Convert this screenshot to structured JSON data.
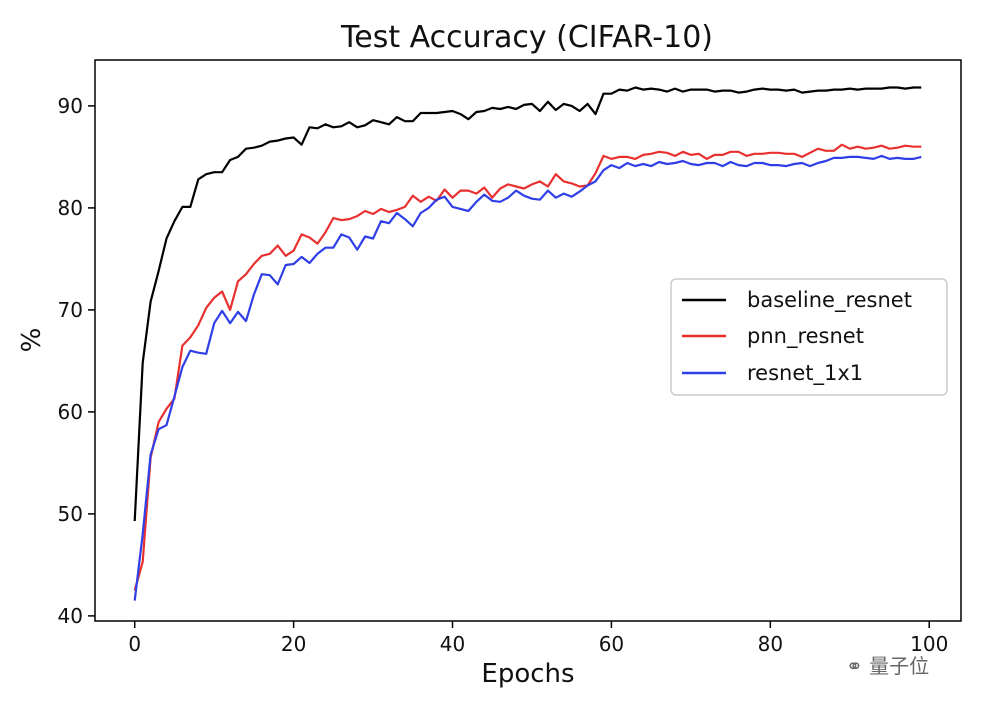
{
  "chart_data": {
    "type": "line",
    "title": "Test Accuracy (CIFAR-10)",
    "xlabel": "Epochs",
    "ylabel": "%",
    "xlim": [
      -5,
      104
    ],
    "ylim": [
      39.5,
      94.5
    ],
    "x_ticks": [
      0,
      20,
      40,
      60,
      80,
      100
    ],
    "y_ticks": [
      40,
      50,
      60,
      70,
      80,
      90
    ],
    "grid": false,
    "legend_position": "center-right",
    "series": [
      {
        "name": "baseline_resnet",
        "color": "#000000",
        "values": [
          49.3,
          64.8,
          70.8,
          73.8,
          77.0,
          78.7,
          80.1,
          80.1,
          82.8,
          83.3,
          83.5,
          83.5,
          84.7,
          85.0,
          85.8,
          85.9,
          86.1,
          86.5,
          86.6,
          86.8,
          86.9,
          86.2,
          87.9,
          87.8,
          88.2,
          87.9,
          88.0,
          88.4,
          87.9,
          88.1,
          88.6,
          88.4,
          88.2,
          88.9,
          88.5,
          88.5,
          89.3,
          89.3,
          89.3,
          89.4,
          89.5,
          89.2,
          88.7,
          89.4,
          89.5,
          89.8,
          89.7,
          89.9,
          89.7,
          90.1,
          90.2,
          89.5,
          90.4,
          89.6,
          90.2,
          90.0,
          89.5,
          90.2,
          89.2,
          91.2,
          91.2,
          91.6,
          91.5,
          91.8,
          91.6,
          91.7,
          91.6,
          91.4,
          91.7,
          91.4,
          91.6,
          91.6,
          91.6,
          91.4,
          91.5,
          91.5,
          91.3,
          91.4,
          91.6,
          91.7,
          91.6,
          91.6,
          91.5,
          91.6,
          91.3,
          91.4,
          91.5,
          91.5,
          91.6,
          91.6,
          91.7,
          91.6,
          91.7,
          91.7,
          91.7,
          91.8,
          91.8,
          91.7,
          91.8,
          91.8
        ]
      },
      {
        "name": "pnn_resnet",
        "color": "#e8312f",
        "values": [
          42.5,
          45.3,
          55.5,
          59.0,
          60.3,
          61.3,
          66.5,
          67.3,
          68.5,
          70.2,
          71.2,
          71.8,
          70.0,
          72.8,
          73.5,
          74.5,
          75.3,
          75.5,
          76.3,
          75.3,
          75.8,
          77.4,
          77.1,
          76.5,
          77.6,
          79.0,
          78.8,
          78.9,
          79.2,
          79.7,
          79.4,
          79.9,
          79.6,
          79.8,
          80.1,
          81.2,
          80.6,
          81.1,
          80.7,
          81.8,
          81.0,
          81.7,
          81.7,
          81.4,
          82.0,
          81.0,
          81.9,
          82.3,
          82.1,
          81.9,
          82.3,
          82.6,
          82.1,
          83.3,
          82.6,
          82.4,
          82.1,
          82.2,
          83.4,
          85.1,
          84.8,
          85.0,
          85.0,
          84.8,
          85.2,
          85.3,
          85.5,
          85.4,
          85.1,
          85.5,
          85.2,
          85.3,
          84.8,
          85.2,
          85.2,
          85.5,
          85.5,
          85.1,
          85.3,
          85.3,
          85.4,
          85.4,
          85.3,
          85.3,
          85.0,
          85.4,
          85.8,
          85.6,
          85.6,
          86.2,
          85.8,
          86.0,
          85.8,
          85.9,
          86.1,
          85.8,
          85.9,
          86.1,
          86.0,
          86.0
        ]
      },
      {
        "name": "resnet_1x1",
        "color": "#2f3fe8",
        "values": [
          41.5,
          48.0,
          55.8,
          58.3,
          58.7,
          61.5,
          64.4,
          66.0,
          65.8,
          65.7,
          68.7,
          69.9,
          68.7,
          69.8,
          68.9,
          71.5,
          73.5,
          73.4,
          72.5,
          74.4,
          74.5,
          75.2,
          74.6,
          75.5,
          76.1,
          76.1,
          77.4,
          77.1,
          75.9,
          77.2,
          77.0,
          78.7,
          78.5,
          79.5,
          78.9,
          78.2,
          79.5,
          80.0,
          80.8,
          81.1,
          80.1,
          79.9,
          79.7,
          80.6,
          81.3,
          80.7,
          80.6,
          81.0,
          81.7,
          81.2,
          80.9,
          80.8,
          81.7,
          81.0,
          81.4,
          81.1,
          81.6,
          82.2,
          82.6,
          83.7,
          84.2,
          83.9,
          84.4,
          84.1,
          84.3,
          84.1,
          84.5,
          84.3,
          84.4,
          84.6,
          84.3,
          84.2,
          84.4,
          84.4,
          84.1,
          84.5,
          84.2,
          84.1,
          84.4,
          84.4,
          84.2,
          84.2,
          84.1,
          84.3,
          84.4,
          84.1,
          84.4,
          84.6,
          84.9,
          84.9,
          85.0,
          85.0,
          84.9,
          84.8,
          85.1,
          84.8,
          84.9,
          84.8,
          84.8,
          85.0
        ]
      }
    ]
  },
  "watermark": {
    "text": "量子位",
    "icon": "wechat-icon"
  }
}
